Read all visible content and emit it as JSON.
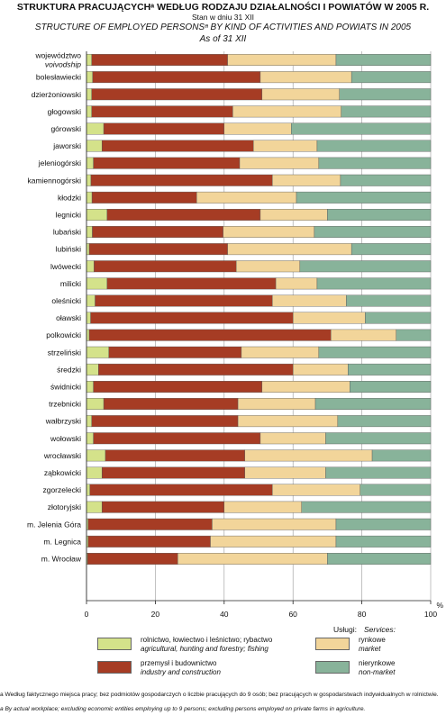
{
  "title_pl": "STRUKTURA PRACUJĄCYCHᵃ WEDŁUG RODZAJU DZIAŁALNOŚCI I POWIATÓW W 2005 R.",
  "as_of_pl": "Stan w dniu 31 XII",
  "title_en": "STRUCTURE OF EMPLOYED PERSONSᵃ BY KIND OF ACTIVITIES AND POWIATS IN 2005",
  "as_of_en": "As of 31 XII",
  "services_label_pl": "Usługi:",
  "services_label_en": "Services:",
  "legend": [
    {
      "pl": "rolnictwo, łowiectwo i leśnictwo; rybactwo",
      "en": "agricultural, hunting and forestry; fishing",
      "color": "#d4e28a"
    },
    {
      "pl": "przemysł i budownictwo",
      "en": "industry and construction",
      "color": "#a63c24"
    },
    {
      "pl": "rynkowe",
      "en": "market",
      "color": "#f2d59a"
    },
    {
      "pl": "nierynkowe",
      "en": "non-market",
      "color": "#88b39a"
    }
  ],
  "footnote_pl": "a Według faktycznego miejsca pracy; bez podmiotów gospodarczych o liczbie pracujących do 9 osób; bez pracujących w gospodarstwach indywidualnych w rolnictwie.",
  "footnote_en": "a By actual workplace; excluding economic entities employing up to 9 persons; excluding persons employed on private farms in agriculture.",
  "chart_data": {
    "type": "bar",
    "orientation": "horizontal",
    "stacked": true,
    "categories": [
      "województwo",
      "bolesławiecki",
      "dzierżoniowski",
      "głogowski",
      "górowski",
      "jaworski",
      "jeleniogórski",
      "kamiennogórski",
      "kłodzki",
      "legnicki",
      "lubański",
      "lubiński",
      "lwówecki",
      "milicki",
      "oleśnicki",
      "oławski",
      "polkowicki",
      "strzeliński",
      "średzki",
      "świdnicki",
      "trzebnicki",
      "wałbrzyski",
      "wołowski",
      "wrocławski",
      "ząbkowicki",
      "zgorzelecki",
      "złotoryjski",
      "m. Jelenia Góra",
      "m. Legnica",
      "m. Wrocław"
    ],
    "category_subtitle": {
      "województwo": "voivodship"
    },
    "series": [
      {
        "name": "rolnictwo, łowiectwo i leśnictwo; rybactwo",
        "color": "#d4e28a",
        "values": [
          1.5,
          1.8,
          1.5,
          1.5,
          5.0,
          4.5,
          2.0,
          1.3,
          1.6,
          6.0,
          1.7,
          0.8,
          2.2,
          6.0,
          2.5,
          1.2,
          0.8,
          6.5,
          3.5,
          2.0,
          5.0,
          1.5,
          2.0,
          5.5,
          4.5,
          1.0,
          4.5,
          0.5,
          0.5,
          0.3
        ]
      },
      {
        "name": "przemysł i budownictwo",
        "color": "#a63c24",
        "values": [
          39.5,
          48.7,
          49.5,
          41.0,
          35.0,
          44.0,
          42.5,
          52.7,
          30.4,
          44.5,
          38.0,
          40.2,
          41.3,
          49.0,
          51.5,
          58.8,
          70.2,
          38.5,
          56.5,
          49.0,
          39.0,
          42.5,
          48.5,
          40.5,
          41.5,
          53.0,
          35.5,
          36.0,
          35.5,
          26.2
        ]
      },
      {
        "name": "rynkowe",
        "color": "#f2d59a",
        "values": [
          31.5,
          26.5,
          22.5,
          31.5,
          19.5,
          18.5,
          23.0,
          19.8,
          29.0,
          19.5,
          26.5,
          36.0,
          18.5,
          12.0,
          21.5,
          21.0,
          19.0,
          22.5,
          16.0,
          25.5,
          22.5,
          29.0,
          19.0,
          37.0,
          23.5,
          25.5,
          22.5,
          36.0,
          36.5,
          43.5
        ]
      },
      {
        "name": "nierynkowe",
        "color": "#88b39a",
        "values": [
          27.5,
          23.0,
          26.5,
          26.0,
          40.5,
          33.0,
          32.5,
          26.2,
          39.0,
          30.0,
          33.8,
          23.0,
          38.0,
          33.0,
          24.5,
          19.0,
          10.0,
          32.5,
          24.0,
          23.5,
          33.5,
          27.0,
          30.5,
          17.0,
          30.5,
          20.5,
          37.5,
          27.5,
          27.5,
          30.0
        ]
      }
    ],
    "xlim": [
      0,
      100
    ],
    "xticks": [
      0,
      20,
      40,
      60,
      80,
      100
    ],
    "xunit": "%",
    "grid": true
  }
}
